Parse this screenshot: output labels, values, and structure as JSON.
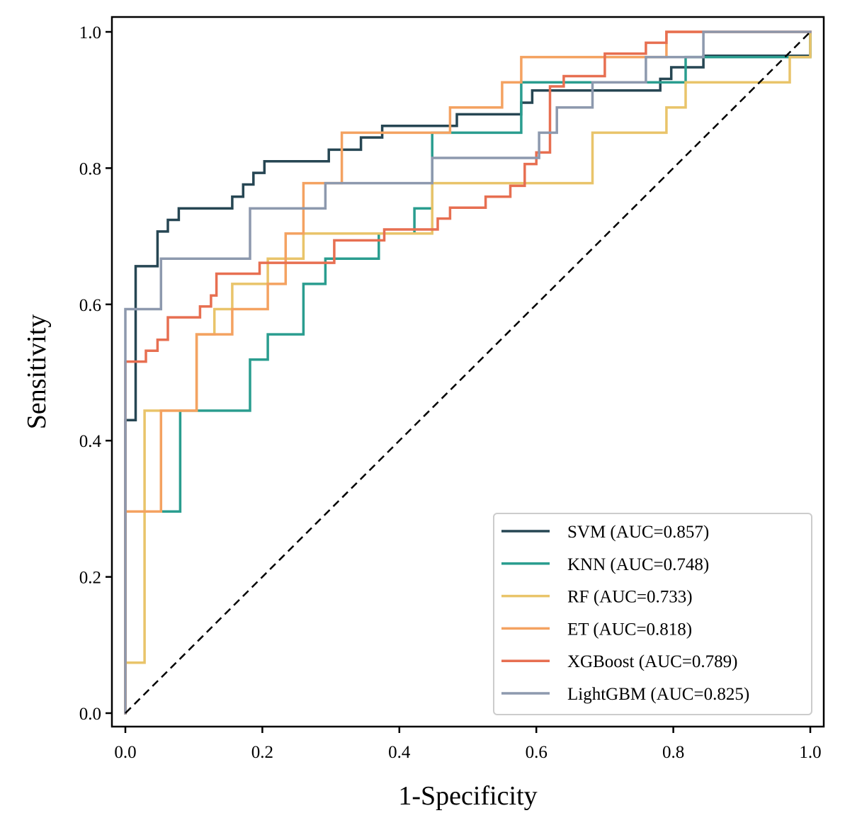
{
  "chart_data": {
    "type": "line",
    "title": "",
    "xlabel": "1-Specificity",
    "ylabel": "Sensitivity",
    "xlim": [
      0.0,
      1.0
    ],
    "ylim": [
      0.0,
      1.0
    ],
    "xticks": [
      "0.0",
      "0.2",
      "0.4",
      "0.6",
      "0.8",
      "1.0"
    ],
    "yticks": [
      "0.0",
      "0.2",
      "0.4",
      "0.6",
      "0.8",
      "1.0"
    ],
    "grid": false,
    "legend_position": "bottom-right",
    "reference_line": {
      "name": "chance",
      "style": "dashed",
      "color": "#000000",
      "points": [
        [
          0,
          0
        ],
        [
          1,
          1
        ]
      ]
    },
    "series": [
      {
        "name": "SVM (AUC=0.857)",
        "model": "SVM",
        "auc": 0.857,
        "color": "#264653",
        "points": [
          [
            0,
            0
          ],
          [
            0,
            0.43
          ],
          [
            0.015,
            0.43
          ],
          [
            0.015,
            0.656
          ],
          [
            0.047,
            0.656
          ],
          [
            0.047,
            0.707
          ],
          [
            0.062,
            0.707
          ],
          [
            0.062,
            0.724
          ],
          [
            0.078,
            0.724
          ],
          [
            0.078,
            0.741
          ],
          [
            0.156,
            0.741
          ],
          [
            0.156,
            0.758
          ],
          [
            0.172,
            0.758
          ],
          [
            0.172,
            0.776
          ],
          [
            0.187,
            0.776
          ],
          [
            0.187,
            0.793
          ],
          [
            0.203,
            0.793
          ],
          [
            0.203,
            0.81
          ],
          [
            0.297,
            0.81
          ],
          [
            0.297,
            0.827
          ],
          [
            0.344,
            0.827
          ],
          [
            0.344,
            0.845
          ],
          [
            0.375,
            0.845
          ],
          [
            0.375,
            0.862
          ],
          [
            0.484,
            0.862
          ],
          [
            0.484,
            0.879
          ],
          [
            0.578,
            0.879
          ],
          [
            0.578,
            0.896
          ],
          [
            0.594,
            0.896
          ],
          [
            0.594,
            0.914
          ],
          [
            0.781,
            0.914
          ],
          [
            0.781,
            0.931
          ],
          [
            0.797,
            0.931
          ],
          [
            0.797,
            0.948
          ],
          [
            0.844,
            0.948
          ],
          [
            0.844,
            0.965
          ],
          [
            1.0,
            0.965
          ],
          [
            1.0,
            1.0
          ]
        ]
      },
      {
        "name": "KNN (AUC=0.748)",
        "model": "KNN",
        "auc": 0.748,
        "color": "#2a9d8f",
        "points": [
          [
            0,
            0
          ],
          [
            0,
            0.296
          ],
          [
            0.08,
            0.296
          ],
          [
            0.08,
            0.444
          ],
          [
            0.182,
            0.444
          ],
          [
            0.182,
            0.519
          ],
          [
            0.208,
            0.519
          ],
          [
            0.208,
            0.556
          ],
          [
            0.26,
            0.556
          ],
          [
            0.26,
            0.63
          ],
          [
            0.292,
            0.63
          ],
          [
            0.292,
            0.667
          ],
          [
            0.37,
            0.667
          ],
          [
            0.37,
            0.704
          ],
          [
            0.422,
            0.704
          ],
          [
            0.422,
            0.741
          ],
          [
            0.448,
            0.741
          ],
          [
            0.448,
            0.852
          ],
          [
            0.578,
            0.852
          ],
          [
            0.578,
            0.926
          ],
          [
            0.818,
            0.926
          ],
          [
            0.818,
            0.963
          ],
          [
            1.0,
            0.963
          ],
          [
            1.0,
            1.0
          ]
        ]
      },
      {
        "name": "RF (AUC=0.733)",
        "model": "RF",
        "auc": 0.733,
        "color": "#e9c46a",
        "points": [
          [
            0,
            0
          ],
          [
            0,
            0.074
          ],
          [
            0.028,
            0.074
          ],
          [
            0.028,
            0.444
          ],
          [
            0.104,
            0.444
          ],
          [
            0.104,
            0.556
          ],
          [
            0.13,
            0.556
          ],
          [
            0.13,
            0.593
          ],
          [
            0.156,
            0.593
          ],
          [
            0.156,
            0.63
          ],
          [
            0.208,
            0.63
          ],
          [
            0.208,
            0.667
          ],
          [
            0.26,
            0.667
          ],
          [
            0.26,
            0.704
          ],
          [
            0.448,
            0.704
          ],
          [
            0.448,
            0.778
          ],
          [
            0.682,
            0.778
          ],
          [
            0.682,
            0.852
          ],
          [
            0.79,
            0.852
          ],
          [
            0.79,
            0.889
          ],
          [
            0.818,
            0.889
          ],
          [
            0.818,
            0.926
          ],
          [
            0.97,
            0.926
          ],
          [
            0.97,
            0.963
          ],
          [
            1.0,
            0.963
          ],
          [
            1.0,
            1.0
          ]
        ]
      },
      {
        "name": "ET (AUC=0.818)",
        "model": "ET",
        "auc": 0.818,
        "color": "#f4a261",
        "points": [
          [
            0,
            0
          ],
          [
            0,
            0.296
          ],
          [
            0.052,
            0.296
          ],
          [
            0.052,
            0.444
          ],
          [
            0.104,
            0.444
          ],
          [
            0.104,
            0.556
          ],
          [
            0.156,
            0.556
          ],
          [
            0.156,
            0.593
          ],
          [
            0.208,
            0.593
          ],
          [
            0.208,
            0.63
          ],
          [
            0.234,
            0.63
          ],
          [
            0.234,
            0.704
          ],
          [
            0.26,
            0.704
          ],
          [
            0.26,
            0.778
          ],
          [
            0.316,
            0.778
          ],
          [
            0.316,
            0.852
          ],
          [
            0.474,
            0.852
          ],
          [
            0.474,
            0.889
          ],
          [
            0.55,
            0.889
          ],
          [
            0.55,
            0.926
          ],
          [
            0.578,
            0.926
          ],
          [
            0.578,
            0.963
          ],
          [
            0.79,
            0.963
          ],
          [
            0.79,
            1.0
          ],
          [
            1.0,
            1.0
          ]
        ]
      },
      {
        "name": "XGBoost (AUC=0.789)",
        "model": "XGBoost",
        "auc": 0.789,
        "color": "#e76f51",
        "points": [
          [
            0,
            0
          ],
          [
            0,
            0.516
          ],
          [
            0.03,
            0.516
          ],
          [
            0.03,
            0.532
          ],
          [
            0.047,
            0.532
          ],
          [
            0.047,
            0.548
          ],
          [
            0.062,
            0.548
          ],
          [
            0.062,
            0.581
          ],
          [
            0.109,
            0.581
          ],
          [
            0.109,
            0.597
          ],
          [
            0.125,
            0.597
          ],
          [
            0.125,
            0.613
          ],
          [
            0.133,
            0.613
          ],
          [
            0.133,
            0.645
          ],
          [
            0.196,
            0.645
          ],
          [
            0.196,
            0.661
          ],
          [
            0.305,
            0.661
          ],
          [
            0.305,
            0.694
          ],
          [
            0.378,
            0.694
          ],
          [
            0.378,
            0.71
          ],
          [
            0.456,
            0.71
          ],
          [
            0.456,
            0.726
          ],
          [
            0.474,
            0.726
          ],
          [
            0.474,
            0.742
          ],
          [
            0.526,
            0.742
          ],
          [
            0.526,
            0.758
          ],
          [
            0.562,
            0.758
          ],
          [
            0.562,
            0.774
          ],
          [
            0.583,
            0.774
          ],
          [
            0.583,
            0.806
          ],
          [
            0.6,
            0.806
          ],
          [
            0.6,
            0.823
          ],
          [
            0.62,
            0.823
          ],
          [
            0.62,
            0.92
          ],
          [
            0.64,
            0.92
          ],
          [
            0.64,
            0.935
          ],
          [
            0.7,
            0.935
          ],
          [
            0.7,
            0.968
          ],
          [
            0.76,
            0.968
          ],
          [
            0.76,
            0.984
          ],
          [
            0.79,
            0.984
          ],
          [
            0.79,
            1.0
          ],
          [
            1.0,
            1.0
          ]
        ]
      },
      {
        "name": "LightGBM (AUC=0.825)",
        "model": "LightGBM",
        "auc": 0.825,
        "color": "#8d99ae",
        "points": [
          [
            0,
            0
          ],
          [
            0,
            0.593
          ],
          [
            0.052,
            0.593
          ],
          [
            0.052,
            0.667
          ],
          [
            0.182,
            0.667
          ],
          [
            0.182,
            0.741
          ],
          [
            0.292,
            0.741
          ],
          [
            0.292,
            0.778
          ],
          [
            0.448,
            0.778
          ],
          [
            0.448,
            0.815
          ],
          [
            0.604,
            0.815
          ],
          [
            0.604,
            0.852
          ],
          [
            0.63,
            0.852
          ],
          [
            0.63,
            0.889
          ],
          [
            0.682,
            0.889
          ],
          [
            0.682,
            0.926
          ],
          [
            0.76,
            0.926
          ],
          [
            0.76,
            0.963
          ],
          [
            0.844,
            0.963
          ],
          [
            0.844,
            1.0
          ],
          [
            1.0,
            1.0
          ]
        ]
      }
    ]
  }
}
